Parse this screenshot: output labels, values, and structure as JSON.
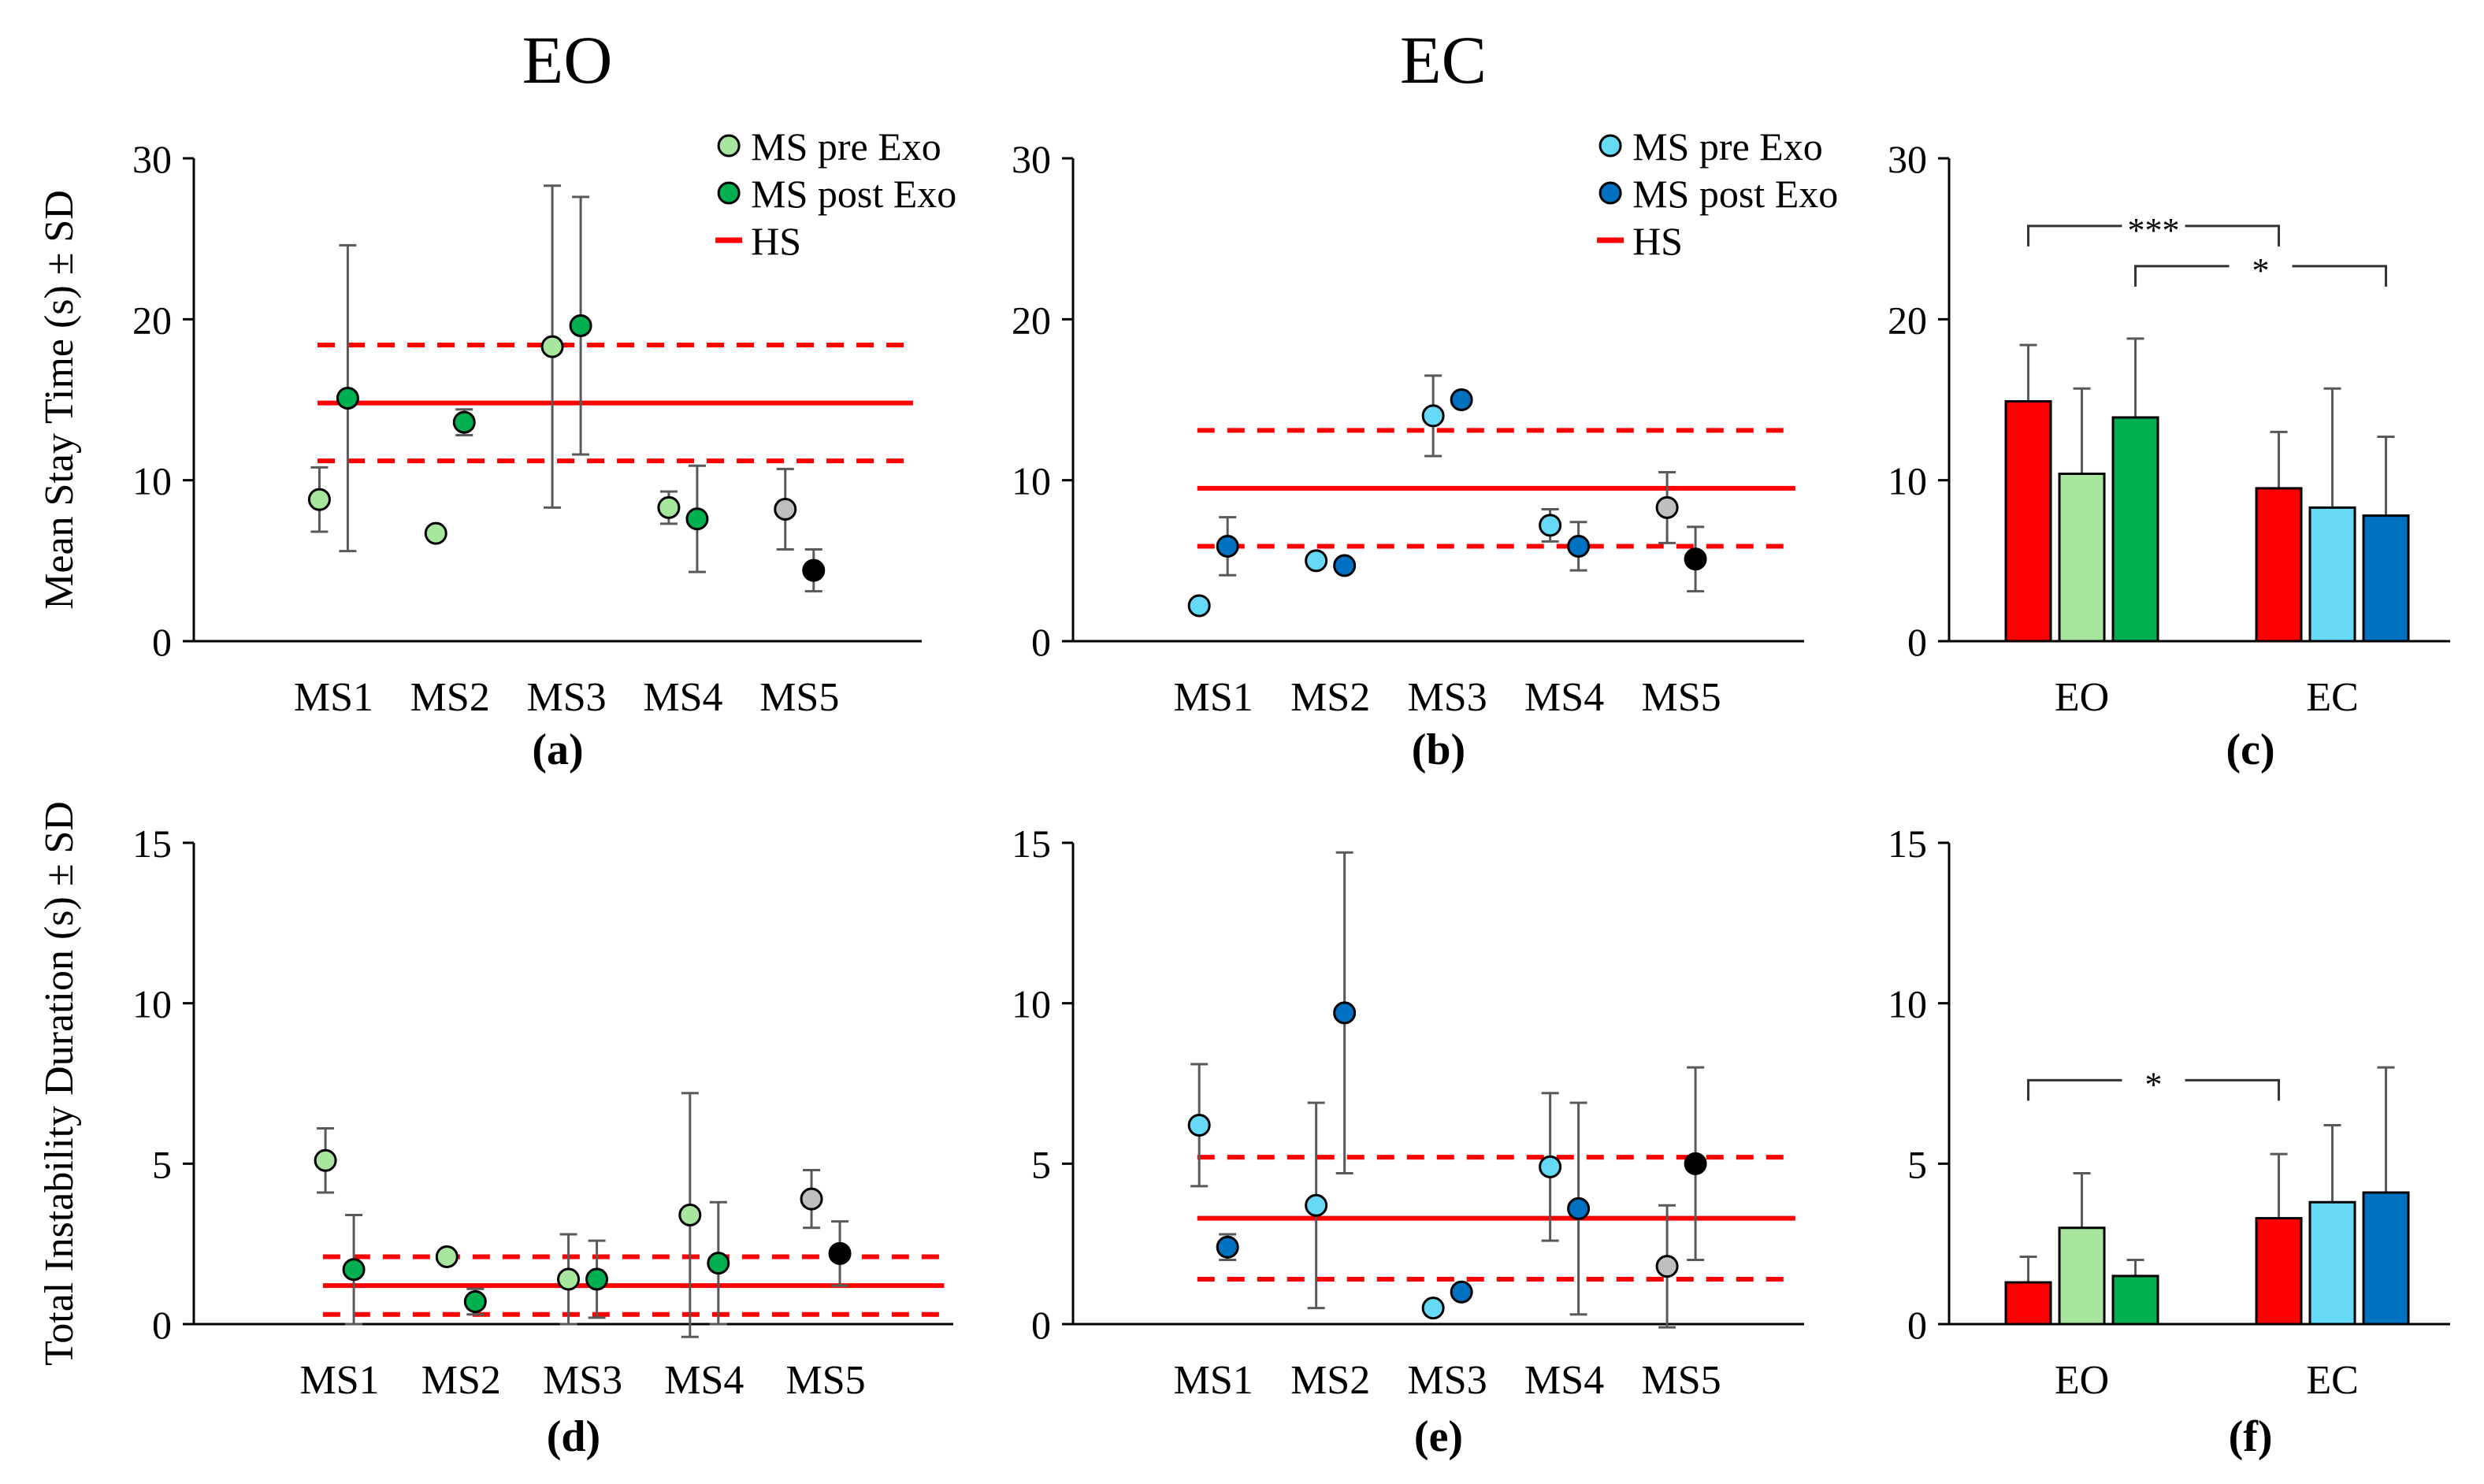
{
  "headers": {
    "eo": "EO",
    "ec": "EC"
  },
  "colors": {
    "hs": "#ff0000",
    "eo_pre": "#a8e6a0",
    "eo_post": "#00b050",
    "ec_pre": "#66d9f7",
    "ec_post": "#0070c0",
    "ms5_pre": "#bfbfbf",
    "ms5_post": "#000000",
    "errorbar": "#595959",
    "axis": "#000000"
  },
  "chart_data": [
    {
      "id": "a",
      "panel_label": "(a)",
      "type": "scatter",
      "condition": "EO",
      "ylabel": "Mean Stay Time (s) ± SD",
      "ylim": [
        0,
        30
      ],
      "yticks": [
        0,
        10,
        20,
        30
      ],
      "categories": [
        "MS1",
        "MS2",
        "MS3",
        "MS4",
        "MS5"
      ],
      "series": [
        {
          "name": "MS pre Exo",
          "values": [
            8.8,
            6.7,
            18.3,
            8.3,
            8.2
          ],
          "sd": [
            2.0,
            0,
            10.0,
            1.0,
            2.5
          ]
        },
        {
          "name": "MS post Exo",
          "values": [
            15.1,
            13.6,
            19.6,
            7.6,
            4.4
          ],
          "sd": [
            9.5,
            0.8,
            8.0,
            3.3,
            1.3
          ]
        }
      ],
      "hs": {
        "mean": 14.8,
        "sd": 3.6
      },
      "legend": [
        "MS pre Exo",
        "MS post Exo",
        "HS"
      ]
    },
    {
      "id": "b",
      "panel_label": "(b)",
      "type": "scatter",
      "condition": "EC",
      "ylabel": "",
      "ylim": [
        0,
        30
      ],
      "yticks": [
        0,
        10,
        20,
        30
      ],
      "categories": [
        "MS1",
        "MS2",
        "MS3",
        "MS4",
        "MS5"
      ],
      "series": [
        {
          "name": "MS pre Exo",
          "values": [
            2.2,
            5.0,
            14.0,
            7.2,
            8.3
          ],
          "sd": [
            0,
            0,
            2.5,
            1.0,
            2.2
          ]
        },
        {
          "name": "MS post Exo",
          "values": [
            5.9,
            4.7,
            15.0,
            5.9,
            5.1
          ],
          "sd": [
            1.8,
            0,
            0,
            1.5,
            2.0
          ]
        }
      ],
      "hs": {
        "mean": 9.5,
        "sd": 3.6
      },
      "legend": [
        "MS pre Exo",
        "MS post Exo",
        "HS"
      ]
    },
    {
      "id": "c",
      "panel_label": "(c)",
      "type": "bar",
      "ylim": [
        0,
        30
      ],
      "yticks": [
        0,
        10,
        20,
        30
      ],
      "categories": [
        "EO",
        "EC"
      ],
      "series": [
        {
          "name": "HS",
          "values": [
            14.9,
            9.5
          ],
          "sd": [
            3.5,
            3.5
          ]
        },
        {
          "name": "MS pre Exo",
          "values": [
            10.4,
            8.3
          ],
          "sd": [
            5.3,
            7.4
          ]
        },
        {
          "name": "MS post Exo",
          "values": [
            13.9,
            7.8
          ],
          "sd": [
            4.9,
            4.9
          ]
        }
      ],
      "significance": [
        {
          "label": "***",
          "from": "EO HS",
          "to": "EC HS",
          "y": 25.8
        },
        {
          "label": "*",
          "from": "EO MS post Exo",
          "to": "EC MS post Exo",
          "y": 23.3
        }
      ]
    },
    {
      "id": "d",
      "panel_label": "(d)",
      "type": "scatter",
      "condition": "EO",
      "ylabel": "Total Instability Duration (s) ± SD",
      "ylim": [
        0,
        15
      ],
      "yticks": [
        0,
        5,
        10,
        15
      ],
      "categories": [
        "MS1",
        "MS2",
        "MS3",
        "MS4",
        "MS5"
      ],
      "series": [
        {
          "name": "MS pre Exo",
          "values": [
            5.1,
            2.1,
            1.4,
            3.4,
            3.9
          ],
          "sd": [
            1.0,
            0,
            1.4,
            3.8,
            0.9
          ]
        },
        {
          "name": "MS post Exo",
          "values": [
            1.7,
            0.7,
            1.4,
            1.9,
            2.2
          ],
          "sd": [
            1.7,
            0.4,
            1.2,
            1.9,
            1.0
          ]
        }
      ],
      "hs": {
        "mean": 1.2,
        "sd": 0.9
      }
    },
    {
      "id": "e",
      "panel_label": "(e)",
      "type": "scatter",
      "condition": "EC",
      "ylabel": "",
      "ylim": [
        0,
        15
      ],
      "yticks": [
        0,
        5,
        10,
        15
      ],
      "categories": [
        "MS1",
        "MS2",
        "MS3",
        "MS4",
        "MS5"
      ],
      "series": [
        {
          "name": "MS pre Exo",
          "values": [
            6.2,
            3.7,
            0.5,
            4.9,
            1.8
          ],
          "sd": [
            1.9,
            3.2,
            0,
            2.3,
            1.9
          ]
        },
        {
          "name": "MS post Exo",
          "values": [
            2.4,
            9.7,
            1.0,
            3.6,
            5.0
          ],
          "sd": [
            0.4,
            5.0,
            0,
            3.3,
            3.0
          ]
        }
      ],
      "hs": {
        "mean": 3.3,
        "sd": 1.9
      }
    },
    {
      "id": "f",
      "panel_label": "(f)",
      "type": "bar",
      "ylim": [
        0,
        15
      ],
      "yticks": [
        0,
        5,
        10,
        15
      ],
      "categories": [
        "EO",
        "EC"
      ],
      "series": [
        {
          "name": "HS",
          "values": [
            1.3,
            3.3
          ],
          "sd": [
            0.8,
            2.0
          ]
        },
        {
          "name": "MS pre Exo",
          "values": [
            3.0,
            3.8
          ],
          "sd": [
            1.7,
            2.4
          ]
        },
        {
          "name": "MS post Exo",
          "values": [
            1.5,
            4.1
          ],
          "sd": [
            0.5,
            3.9
          ]
        }
      ],
      "significance": [
        {
          "label": "*",
          "from": "EO HS",
          "to": "EC HS",
          "y": 7.6
        }
      ]
    }
  ]
}
